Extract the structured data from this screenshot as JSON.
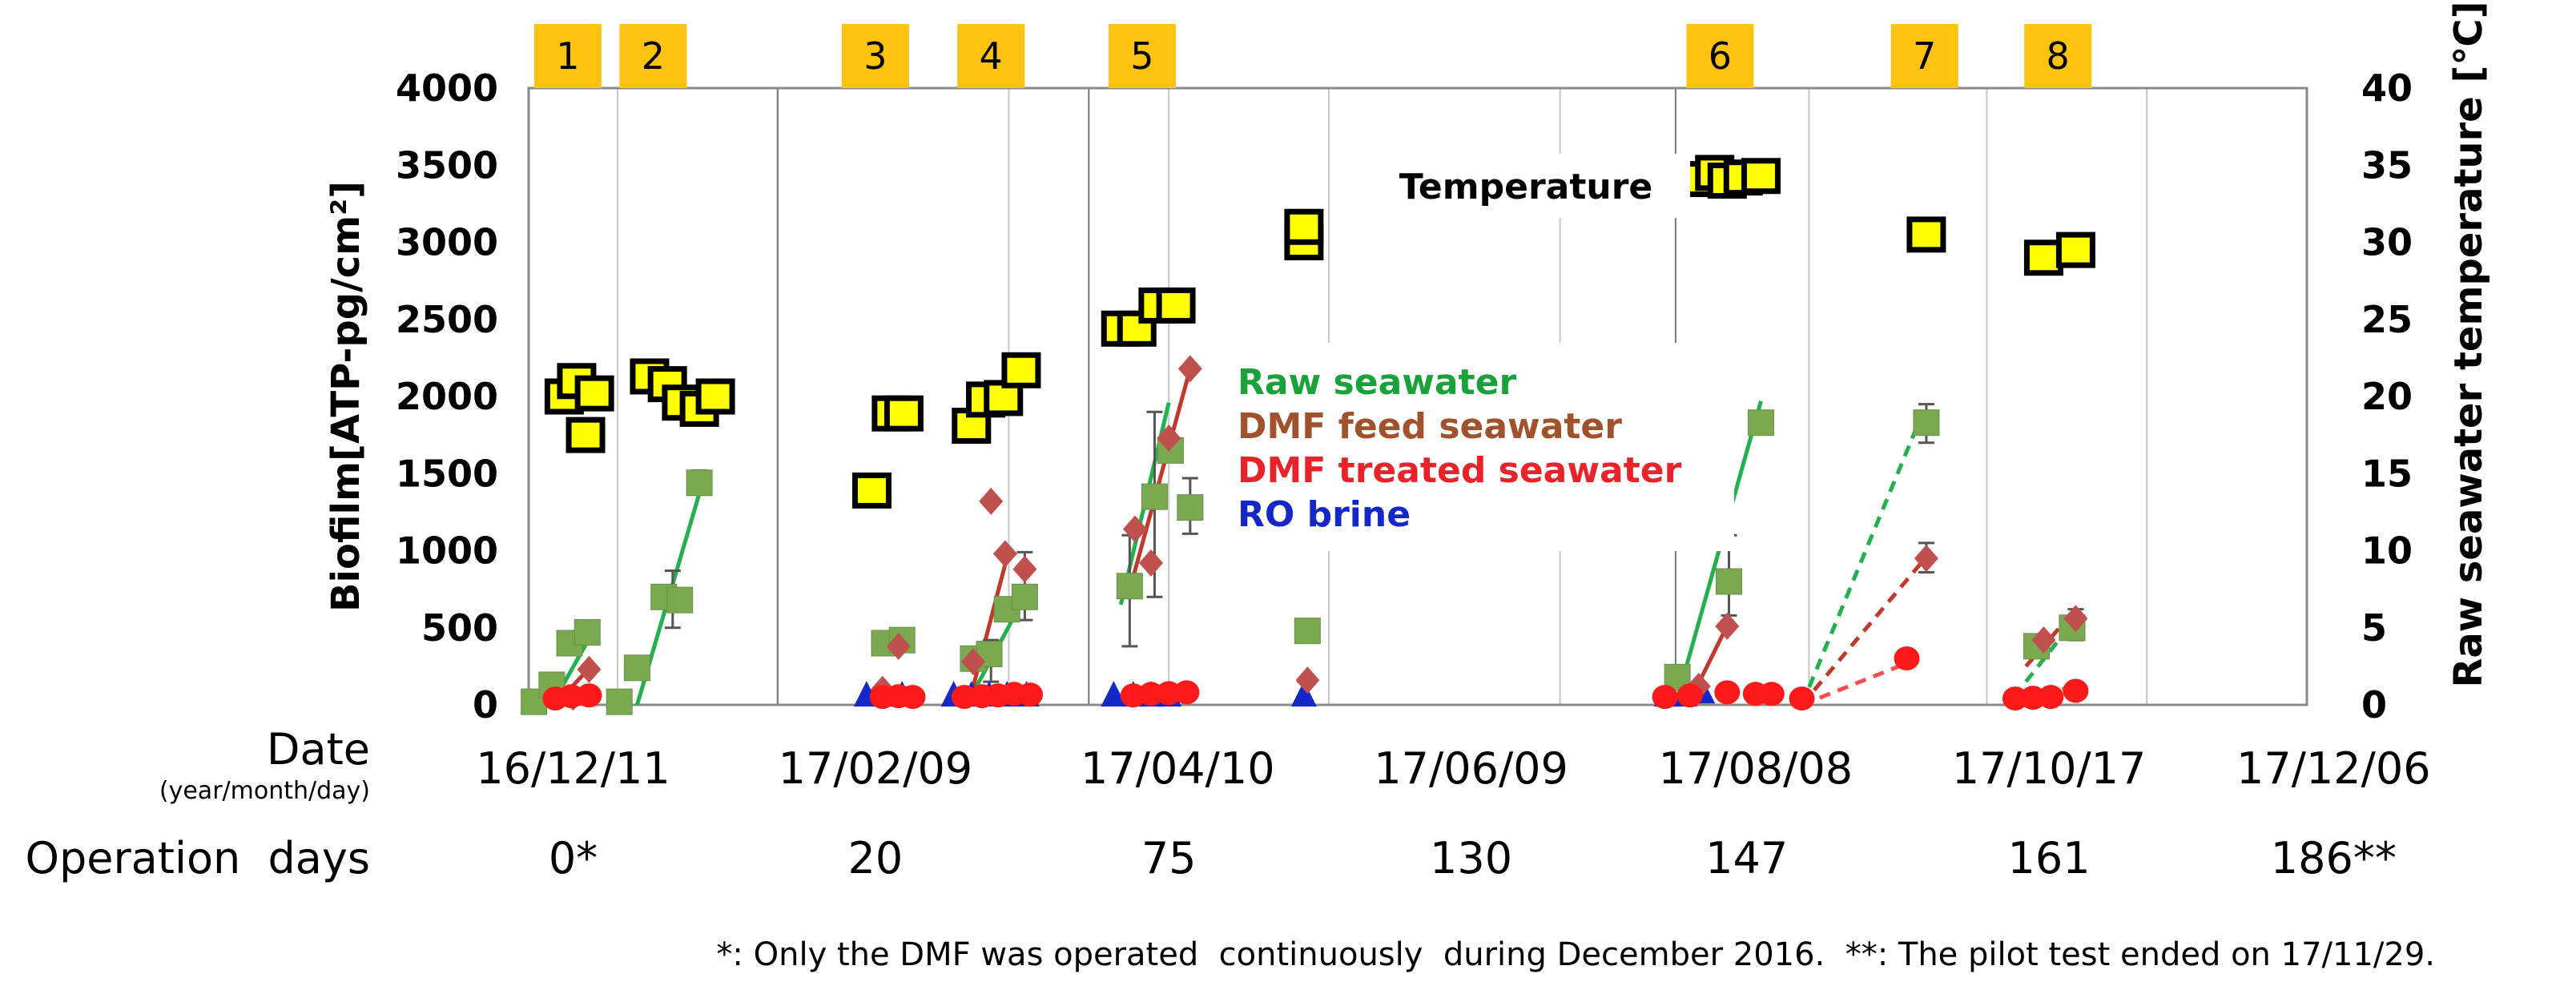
{
  "chart_data": {
    "type": "scatter",
    "title": "",
    "ylabel": "Biofilm[ATP-pg/cm²]",
    "y2label": "Raw seawater temperature [℃]",
    "ylim": [
      0,
      4000
    ],
    "y2lim": [
      0,
      40
    ],
    "yticks": [
      "4000",
      "3500",
      "3000",
      "2500",
      "2000",
      "1500",
      "1000",
      "500",
      "0"
    ],
    "y2ticks": [
      "40",
      "35",
      "30",
      "25",
      "20",
      "15",
      "10",
      "5",
      "0"
    ],
    "xlim": [
      0,
      100
    ],
    "grid_x": [
      5,
      14,
      27,
      36,
      45,
      58,
      72,
      82,
      91
    ],
    "date_label": "Date",
    "date_sublabel": "(year/month/day)",
    "dates": [
      "16/12/11",
      "17/02/09",
      "17/04/10",
      "17/06/09",
      "17/08/08",
      "17/10/17",
      "17/12/06"
    ],
    "operation_label": "Operation  days",
    "operation_days": [
      "0*",
      "20",
      "75",
      "130",
      "147",
      "161",
      "186**"
    ],
    "periods": [
      "1",
      "2",
      "3",
      "4",
      "5",
      "6",
      "7",
      "8"
    ],
    "temperature_label": "Temperature",
    "legend": [
      {
        "name": "Raw seawater",
        "color": "#1aa23a"
      },
      {
        "name": "DMF feed seawater",
        "color": "#a0522d"
      },
      {
        "name": "DMF treated seawater",
        "color": "#e8242a"
      },
      {
        "name": "RO brine",
        "color": "#1428c8"
      }
    ],
    "footnote": "*: Only the DMF was operated  continuously  during December 2016.  **: The pilot test ended on 17/11/29.",
    "temperature": [
      {
        "x": 2.0,
        "y": 20.0
      },
      {
        "x": 2.7,
        "y": 21.0
      },
      {
        "x": 3.2,
        "y": 17.5
      },
      {
        "x": 3.7,
        "y": 20.2
      },
      {
        "x": 6.8,
        "y": 21.3
      },
      {
        "x": 7.8,
        "y": 20.8
      },
      {
        "x": 8.6,
        "y": 19.6
      },
      {
        "x": 9.6,
        "y": 19.2
      },
      {
        "x": 10.5,
        "y": 20.0
      },
      {
        "x": 19.3,
        "y": 13.9
      },
      {
        "x": 20.4,
        "y": 18.9
      },
      {
        "x": 21.1,
        "y": 18.9
      },
      {
        "x": 24.9,
        "y": 18.1
      },
      {
        "x": 25.7,
        "y": 19.8
      },
      {
        "x": 26.7,
        "y": 19.9
      },
      {
        "x": 27.7,
        "y": 21.7
      },
      {
        "x": 33.3,
        "y": 24.4
      },
      {
        "x": 34.2,
        "y": 24.4
      },
      {
        "x": 35.4,
        "y": 25.9
      },
      {
        "x": 36.4,
        "y": 25.9
      },
      {
        "x": 43.6,
        "y": 30.0
      },
      {
        "x": 43.6,
        "y": 31.0
      },
      {
        "x": 66.0,
        "y": 34.1
      },
      {
        "x": 66.7,
        "y": 34.5
      },
      {
        "x": 67.4,
        "y": 34.0
      },
      {
        "x": 68.3,
        "y": 34.2
      },
      {
        "x": 69.3,
        "y": 34.3
      },
      {
        "x": 78.6,
        "y": 30.5
      },
      {
        "x": 85.2,
        "y": 29.0
      },
      {
        "x": 87.0,
        "y": 29.5
      }
    ],
    "series": [
      {
        "name": "Raw seawater",
        "color": "#7aaa50",
        "marker": "square",
        "points": [
          {
            "x": 0.3,
            "y": 20
          },
          {
            "x": 1.3,
            "y": 130
          },
          {
            "x": 2.3,
            "y": 400
          },
          {
            "x": 3.3,
            "y": 470
          },
          {
            "x": 5.1,
            "y": 20
          },
          {
            "x": 6.1,
            "y": 240
          },
          {
            "x": 7.6,
            "y": 700
          },
          {
            "x": 8.5,
            "y": 680
          },
          {
            "x": 9.6,
            "y": 1440
          },
          {
            "x": 20.0,
            "y": 400
          },
          {
            "x": 21.0,
            "y": 420
          },
          {
            "x": 25.0,
            "y": 300
          },
          {
            "x": 25.9,
            "y": 330
          },
          {
            "x": 26.9,
            "y": 620
          },
          {
            "x": 27.9,
            "y": 700
          },
          {
            "x": 33.8,
            "y": 770
          },
          {
            "x": 35.2,
            "y": 1350
          },
          {
            "x": 36.1,
            "y": 1650
          },
          {
            "x": 37.2,
            "y": 1280
          },
          {
            "x": 43.8,
            "y": 480
          },
          {
            "x": 64.6,
            "y": 180
          },
          {
            "x": 67.5,
            "y": 800
          },
          {
            "x": 69.3,
            "y": 1830
          },
          {
            "x": 78.6,
            "y": 1830
          },
          {
            "x": 84.8,
            "y": 380
          },
          {
            "x": 86.8,
            "y": 500
          }
        ]
      },
      {
        "name": "DMF feed seawater",
        "color": "#c0504d",
        "marker": "diamond",
        "points": [
          {
            "x": 2.5,
            "y": 50
          },
          {
            "x": 3.4,
            "y": 230
          },
          {
            "x": 19.9,
            "y": 100
          },
          {
            "x": 20.8,
            "y": 380
          },
          {
            "x": 25.0,
            "y": 280
          },
          {
            "x": 26.0,
            "y": 1320
          },
          {
            "x": 26.8,
            "y": 980
          },
          {
            "x": 27.9,
            "y": 880
          },
          {
            "x": 34.1,
            "y": 1140
          },
          {
            "x": 35.0,
            "y": 920
          },
          {
            "x": 36.0,
            "y": 1730
          },
          {
            "x": 37.2,
            "y": 2180
          },
          {
            "x": 43.8,
            "y": 160
          },
          {
            "x": 65.8,
            "y": 120
          },
          {
            "x": 67.4,
            "y": 510
          },
          {
            "x": 78.6,
            "y": 950
          },
          {
            "x": 85.2,
            "y": 420
          },
          {
            "x": 87.0,
            "y": 560
          }
        ]
      },
      {
        "name": "DMF treated seawater",
        "color": "#ff1a1a",
        "marker": "circle",
        "points": [
          {
            "x": 1.5,
            "y": 10
          },
          {
            "x": 2.4,
            "y": 25
          },
          {
            "x": 3.4,
            "y": 30
          },
          {
            "x": 19.9,
            "y": 20
          },
          {
            "x": 20.8,
            "y": 25
          },
          {
            "x": 21.6,
            "y": 20
          },
          {
            "x": 24.5,
            "y": 20
          },
          {
            "x": 25.5,
            "y": 25
          },
          {
            "x": 26.4,
            "y": 30
          },
          {
            "x": 27.3,
            "y": 40
          },
          {
            "x": 28.2,
            "y": 35
          },
          {
            "x": 34.0,
            "y": 30
          },
          {
            "x": 35.0,
            "y": 40
          },
          {
            "x": 36.0,
            "y": 45
          },
          {
            "x": 37.0,
            "y": 50
          },
          {
            "x": 63.9,
            "y": 20
          },
          {
            "x": 65.3,
            "y": 30
          },
          {
            "x": 67.4,
            "y": 50
          },
          {
            "x": 69.0,
            "y": 40
          },
          {
            "x": 69.9,
            "y": 40
          },
          {
            "x": 71.6,
            "y": 10
          },
          {
            "x": 77.5,
            "y": 270
          },
          {
            "x": 83.6,
            "y": 10
          },
          {
            "x": 84.6,
            "y": 15
          },
          {
            "x": 85.6,
            "y": 20
          },
          {
            "x": 87.0,
            "y": 60
          }
        ]
      },
      {
        "name": "RO brine",
        "color": "#1428c8",
        "marker": "triangle",
        "points": [
          {
            "x": 19.0,
            "y": 10
          },
          {
            "x": 20.0,
            "y": 10
          },
          {
            "x": 21.0,
            "y": 10
          },
          {
            "x": 23.9,
            "y": 10
          },
          {
            "x": 24.9,
            "y": 10
          },
          {
            "x": 25.9,
            "y": 10
          },
          {
            "x": 26.9,
            "y": 10
          },
          {
            "x": 28.0,
            "y": 10
          },
          {
            "x": 32.9,
            "y": 10
          },
          {
            "x": 34.0,
            "y": 10
          },
          {
            "x": 35.0,
            "y": 10
          },
          {
            "x": 36.0,
            "y": 10
          },
          {
            "x": 43.6,
            "y": 10
          },
          {
            "x": 64.0,
            "y": 10
          },
          {
            "x": 65.0,
            "y": 10
          },
          {
            "x": 66.0,
            "y": 30
          }
        ]
      }
    ],
    "trend_lines": [
      {
        "color": "#22b14c",
        "dashed": false,
        "x1": 1.3,
        "y1": 0,
        "x2": 3.6,
        "y2": 470
      },
      {
        "color": "#22b14c",
        "dashed": false,
        "x1": 6.1,
        "y1": 0,
        "x2": 9.8,
        "y2": 1450
      },
      {
        "color": "#22b14c",
        "dashed": false,
        "x1": 25.0,
        "y1": 80,
        "x2": 27.9,
        "y2": 700
      },
      {
        "color": "#22b14c",
        "dashed": false,
        "x1": 33.3,
        "y1": 650,
        "x2": 36.0,
        "y2": 1960
      },
      {
        "color": "#22b14c",
        "dashed": false,
        "x1": 64.5,
        "y1": 0,
        "x2": 69.3,
        "y2": 1970
      },
      {
        "color": "#22b14c",
        "dashed": true,
        "x1": 71.6,
        "y1": 0,
        "x2": 78.6,
        "y2": 1950
      },
      {
        "color": "#22b14c",
        "dashed": true,
        "x1": 84.2,
        "y1": 150,
        "x2": 87.0,
        "y2": 560
      },
      {
        "color": "#c0392b",
        "dashed": false,
        "x1": 1.5,
        "y1": 0,
        "x2": 3.5,
        "y2": 250
      },
      {
        "color": "#c0392b",
        "dashed": false,
        "x1": 24.8,
        "y1": 30,
        "x2": 27.0,
        "y2": 1000
      },
      {
        "color": "#c0392b",
        "dashed": false,
        "x1": 34.0,
        "y1": 830,
        "x2": 37.2,
        "y2": 2180
      },
      {
        "color": "#c0392b",
        "dashed": false,
        "x1": 65.5,
        "y1": 70,
        "x2": 67.6,
        "y2": 560
      },
      {
        "color": "#c0392b",
        "dashed": true,
        "x1": 71.6,
        "y1": 0,
        "x2": 78.6,
        "y2": 960
      },
      {
        "color": "#c0392b",
        "dashed": true,
        "x1": 84.2,
        "y1": 250,
        "x2": 87.0,
        "y2": 620
      },
      {
        "color": "#ff4d4d",
        "dashed": true,
        "x1": 71.6,
        "y1": 0,
        "x2": 77.5,
        "y2": 270
      },
      {
        "color": "#ff4d4d",
        "dashed": true,
        "x1": 84.2,
        "y1": 20,
        "x2": 87.0,
        "y2": 130
      }
    ],
    "error_bars": [
      {
        "x": 8.1,
        "lo": 500,
        "hi": 870
      },
      {
        "x": 9.6,
        "lo": 1380,
        "hi": 1520
      },
      {
        "x": 26.0,
        "lo": 150,
        "hi": 420
      },
      {
        "x": 27.9,
        "lo": 550,
        "hi": 990
      },
      {
        "x": 33.8,
        "lo": 380,
        "hi": 1100
      },
      {
        "x": 35.2,
        "lo": 700,
        "hi": 1900
      },
      {
        "x": 37.2,
        "lo": 1110,
        "hi": 1470
      },
      {
        "x": 67.5,
        "lo": 580,
        "hi": 1100
      },
      {
        "x": 78.6,
        "lo": 1700,
        "hi": 1950
      },
      {
        "x": 78.6,
        "lo": 860,
        "hi": 1050
      },
      {
        "x": 87.0,
        "lo": 420,
        "hi": 620
      }
    ]
  }
}
